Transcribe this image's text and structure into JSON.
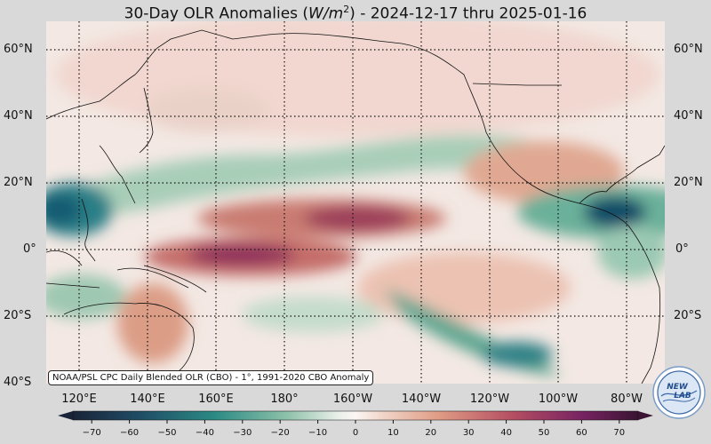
{
  "title": {
    "prefix": "30-Day OLR Anomalies (",
    "unit_base": "W/m",
    "unit_exp": "2",
    "suffix": ") - 2024-12-17 thru 2025-01-16"
  },
  "map": {
    "lat_labels_left": [
      "60°N",
      "40°N",
      "20°N",
      "0°",
      "20°S",
      "40°S"
    ],
    "lat_labels_right": [
      "60°N",
      "40°N",
      "20°N",
      "0°",
      "20°S"
    ],
    "lon_labels": [
      "120°E",
      "140°E",
      "160°E",
      "180°",
      "160°W",
      "140°W",
      "120°W",
      "100°W",
      "80°W"
    ],
    "credit": "NOAA/PSL CPC Daily Blended OLR (CBO) - 1°, 1991-2020 CBO Anomaly",
    "colors": {
      "ocean_base": "#f3e8e3",
      "positive_strong": "#8a1f5e",
      "positive_mid": "#d68a78",
      "neutral": "#f7f3f1",
      "negative_mid": "#4f9e86",
      "negative_strong": "#0b4f6a"
    }
  },
  "colorbar": {
    "ticks": [
      "−70",
      "−60",
      "−50",
      "−40",
      "−30",
      "−20",
      "−10",
      "0",
      "10",
      "20",
      "30",
      "40",
      "50",
      "60",
      "70"
    ],
    "min": -75,
    "max": 75
  },
  "logo": {
    "text_top": "NEW",
    "text_bottom": "LAB"
  }
}
